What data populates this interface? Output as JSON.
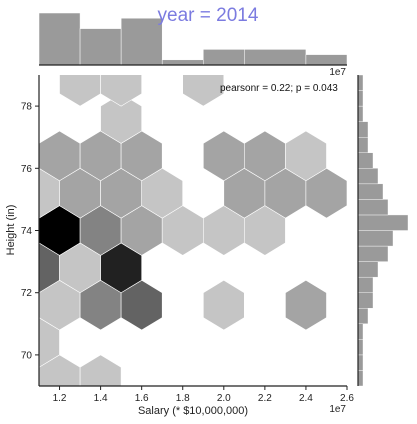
{
  "chart_data": {
    "type": "hexbin",
    "title": "year = 2014",
    "xlabel": "Salary (* $10,000,000)",
    "ylabel": "Height (in)",
    "annotation": "pearsonr = 0.22; p = 0.043",
    "xlim": [
      11000000,
      26000000
    ],
    "ylim": [
      69,
      79
    ],
    "x_offset_label": "1e7",
    "x_ticks": [
      12000000,
      14000000,
      16000000,
      18000000,
      20000000,
      22000000,
      24000000,
      26000000
    ],
    "x_tick_labels": [
      "1.2",
      "1.4",
      "1.6",
      "1.8",
      "2.0",
      "2.2",
      "2.4",
      "2.6"
    ],
    "y_ticks": [
      70,
      72,
      74,
      76,
      78
    ],
    "y_tick_labels": [
      "70",
      "72",
      "74",
      "76",
      "78"
    ],
    "hexbins": [
      {
        "x": 12000000,
        "y": 69.2,
        "count": 1
      },
      {
        "x": 14000000,
        "y": 69.2,
        "count": 1
      },
      {
        "x": 11000000,
        "y": 70.4,
        "count": 1
      },
      {
        "x": 13000000,
        "y": 70.4,
        "count": 0
      },
      {
        "x": 12000000,
        "y": 71.6,
        "count": 1
      },
      {
        "x": 14000000,
        "y": 71.6,
        "count": 3
      },
      {
        "x": 16000000,
        "y": 71.6,
        "count": 4
      },
      {
        "x": 20000000,
        "y": 71.6,
        "count": 1
      },
      {
        "x": 24000000,
        "y": 71.6,
        "count": 2
      },
      {
        "x": 11000000,
        "y": 72.8,
        "count": 4
      },
      {
        "x": 13000000,
        "y": 72.8,
        "count": 1
      },
      {
        "x": 15000000,
        "y": 72.8,
        "count": 6
      },
      {
        "x": 12000000,
        "y": 74.0,
        "count": 7
      },
      {
        "x": 14000000,
        "y": 74.0,
        "count": 3
      },
      {
        "x": 16000000,
        "y": 74.0,
        "count": 2
      },
      {
        "x": 18000000,
        "y": 74.0,
        "count": 1
      },
      {
        "x": 20000000,
        "y": 74.0,
        "count": 1
      },
      {
        "x": 22000000,
        "y": 74.0,
        "count": 1
      },
      {
        "x": 11000000,
        "y": 75.2,
        "count": 1
      },
      {
        "x": 13000000,
        "y": 75.2,
        "count": 2
      },
      {
        "x": 15000000,
        "y": 75.2,
        "count": 2
      },
      {
        "x": 17000000,
        "y": 75.2,
        "count": 1
      },
      {
        "x": 21000000,
        "y": 75.2,
        "count": 2
      },
      {
        "x": 23000000,
        "y": 75.2,
        "count": 2
      },
      {
        "x": 25000000,
        "y": 75.2,
        "count": 2
      },
      {
        "x": 12000000,
        "y": 76.4,
        "count": 2
      },
      {
        "x": 14000000,
        "y": 76.4,
        "count": 2
      },
      {
        "x": 16000000,
        "y": 76.4,
        "count": 2
      },
      {
        "x": 20000000,
        "y": 76.4,
        "count": 2
      },
      {
        "x": 22000000,
        "y": 76.4,
        "count": 2
      },
      {
        "x": 24000000,
        "y": 76.4,
        "count": 1
      },
      {
        "x": 15000000,
        "y": 77.6,
        "count": 1
      },
      {
        "x": 13000000,
        "y": 78.8,
        "count": 1
      },
      {
        "x": 15000000,
        "y": 78.8,
        "count": 1
      },
      {
        "x": 19000000,
        "y": 78.8,
        "count": 1
      }
    ],
    "x_marginal": {
      "bin_edges": [
        11000000,
        13000000,
        15000000,
        17000000,
        19000000,
        21000000,
        24000000,
        26000000
      ],
      "counts": [
        10,
        7,
        9,
        1,
        3,
        3,
        2
      ]
    },
    "y_marginal": {
      "bin_edges": [
        69,
        69.5,
        70,
        70.5,
        71,
        71.5,
        72,
        72.5,
        73,
        73.5,
        74,
        74.5,
        75,
        75.5,
        76,
        76.5,
        77,
        77.5,
        78,
        78.5,
        79
      ],
      "counts": [
        1,
        1,
        1,
        1,
        2,
        3,
        3,
        4,
        6,
        7,
        10,
        6,
        5,
        4,
        3,
        2,
        2,
        1,
        1,
        1
      ]
    },
    "colors": {
      "hex_max": "#000000",
      "hex_min": "#e6e6e6",
      "marginal_bar": "#9a9a9a",
      "title": "#7b7be0"
    }
  }
}
